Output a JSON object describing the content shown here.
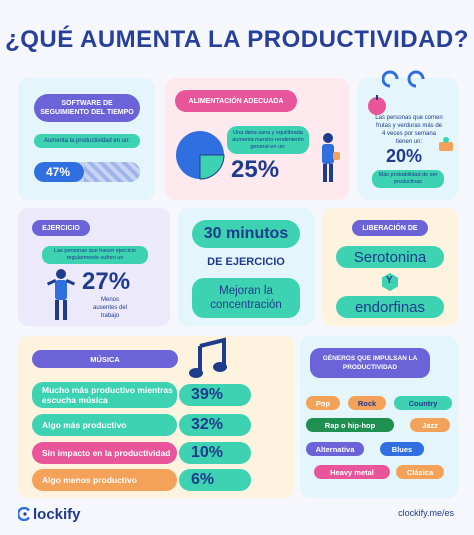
{
  "title": "¿QUÉ AUMENTA LA PRODUCTIVIDAD?",
  "software": {
    "header": "SOFTWARE DE SEGUIMIENTO DEL TIEMPO",
    "desc": "Aumenta la productividad en un:",
    "value": "47%",
    "fill_percent": 47
  },
  "alimentacion": {
    "header": "ALIMENTACIÓN ADECUADA",
    "desc": "Una dieta sana y equilibrada aumenta nuestro rendimiento general en un:",
    "value": "25%",
    "pie_percent": 25
  },
  "frutas": {
    "desc": "Las personas que comen frutas y verduras más de 4 veces por semana tienen un:",
    "value": "20%",
    "sub": "Más probabilidad de ser productivas"
  },
  "ejercicio": {
    "header": "EJERCICIO",
    "desc": "Las personas que hacen ejercicio regularmente sufren un",
    "value": "27%",
    "sub": "Menos ausentes del trabajo"
  },
  "minutos": {
    "line1": "30 minutos",
    "line2": "DE EJERCICIO",
    "line3": "Mejoran la concentración"
  },
  "liberacion": {
    "header": "LIBERACIÓN DE",
    "word1": "Serotonina",
    "connector": "Y",
    "word2": "endorfinas"
  },
  "musica": {
    "header": "MÚSICA",
    "rows": [
      {
        "label": "Mucho más productivo mientras escucha música",
        "value": "39%",
        "color": "#3cd2b2"
      },
      {
        "label": "Algo más productivo",
        "value": "32%",
        "color": "#3cd2b2"
      },
      {
        "label": "Sin impacto en la productividad",
        "value": "10%",
        "color": "#e9559a"
      },
      {
        "label": "Algo menos productivo",
        "value": "6%",
        "color": "#f4a259"
      }
    ]
  },
  "generos": {
    "header": "GÉNEROS QUE IMPULSAN LA PRODUCTIVIDAD",
    "items": [
      "Pop",
      "Rock",
      "Country",
      "Rap o hip-hop",
      "Jazz",
      "Alternativa",
      "Blues",
      "Heavy metal",
      "Clásica"
    ]
  },
  "footer": {
    "logo_text": "lockify",
    "url": "clockify.me/es"
  },
  "colors": {
    "navy": "#1f3b8c",
    "teal": "#3cd2b2",
    "purple": "#6c63d9",
    "pink": "#e9559a",
    "orange": "#f4a259",
    "blue": "#2f6fe0"
  }
}
